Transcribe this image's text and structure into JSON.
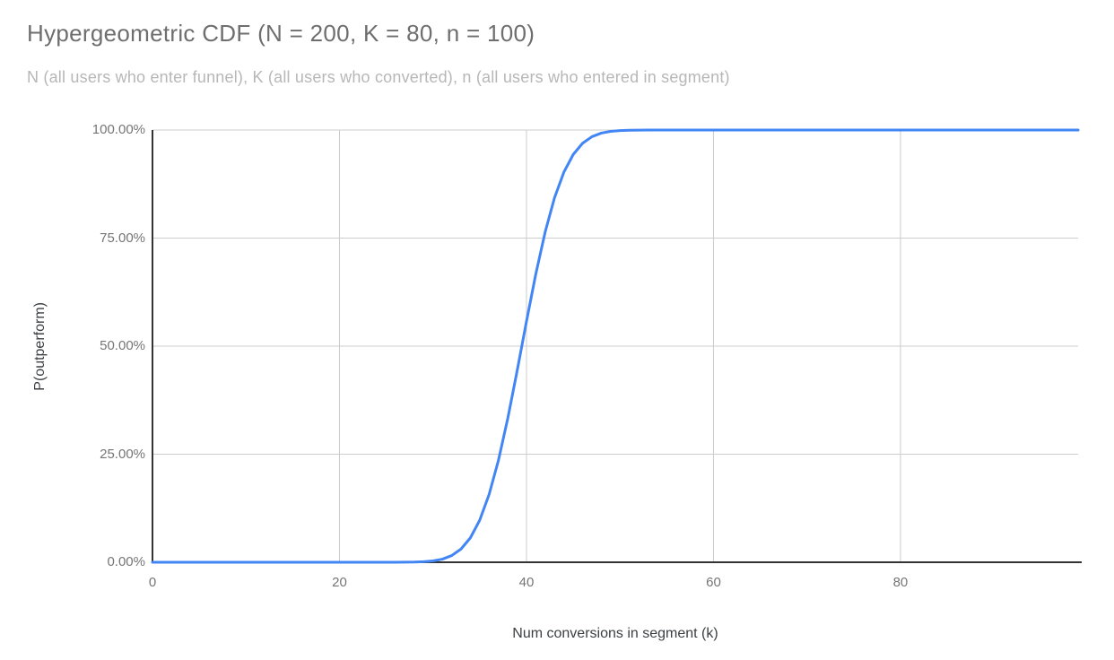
{
  "chart": {
    "title": "Hypergeometric CDF (N = 200, K = 80, n = 100)",
    "subtitle": "N (all users who enter funnel), K (all users who converted), n (all users who entered in segment)",
    "x_axis_title": "Num conversions in segment (k)",
    "y_axis_title": "P(outperform)"
  },
  "colors": {
    "series_line": "#4285f4",
    "gridline": "#cccccc",
    "axis_line": "#333333",
    "title_text": "#6e6e6e",
    "subtitle_text": "#b7b7b7",
    "tick_text": "#757575",
    "axis_title_text": "#3c4043",
    "background": "#ffffff"
  },
  "chart_data": {
    "type": "line",
    "title": "Hypergeometric CDF (N = 200, K = 80, n = 100)",
    "subtitle": "N (all users who enter funnel), K (all users who converted), n (all users who entered in segment)",
    "xlabel": "Num conversions in segment (k)",
    "ylabel": "P(outperform)",
    "xlim": [
      0,
      99
    ],
    "ylim": [
      0,
      1
    ],
    "grid": true,
    "legend": "none",
    "x_tick_values": [
      0,
      20,
      40,
      60,
      80
    ],
    "x_tick_labels": [
      "0",
      "20",
      "40",
      "60",
      "80"
    ],
    "y_tick_values": [
      0,
      0.25,
      0.5,
      0.75,
      1
    ],
    "y_tick_labels": [
      "0.00%",
      "25.00%",
      "50.00%",
      "75.00%",
      "100.00%"
    ],
    "series": [
      {
        "name": "P(outperform)",
        "color": "#4285f4",
        "x": [
          0,
          1,
          2,
          3,
          4,
          5,
          6,
          7,
          8,
          9,
          10,
          11,
          12,
          13,
          14,
          15,
          16,
          17,
          18,
          19,
          20,
          21,
          22,
          23,
          24,
          25,
          26,
          27,
          28,
          29,
          30,
          31,
          32,
          33,
          34,
          35,
          36,
          37,
          38,
          39,
          40,
          41,
          42,
          43,
          44,
          45,
          46,
          47,
          48,
          49,
          50,
          51,
          52,
          53,
          54,
          55,
          56,
          57,
          58,
          59,
          60,
          61,
          62,
          63,
          64,
          65,
          66,
          67,
          68,
          69,
          70,
          71,
          72,
          73,
          74,
          75,
          76,
          77,
          78,
          79,
          80,
          81,
          82,
          83,
          84,
          85,
          86,
          87,
          88,
          89,
          90,
          91,
          92,
          93,
          94,
          95,
          96,
          97,
          98,
          99
        ],
        "y": [
          0,
          0,
          0,
          0,
          0,
          0,
          0,
          0,
          0,
          0,
          0,
          0,
          0,
          0,
          0,
          0,
          0,
          0,
          0,
          0,
          0,
          0,
          0,
          0,
          0,
          2e-05,
          5e-05,
          0.00016,
          0.00046,
          0.00125,
          0.00311,
          0.00718,
          0.01539,
          0.03062,
          0.05655,
          0.09745,
          0.15672,
          0.23576,
          0.33287,
          0.44275,
          0.55725,
          0.66713,
          0.76424,
          0.84328,
          0.90255,
          0.94345,
          0.96938,
          0.98461,
          0.99282,
          0.99689,
          0.99875,
          0.99954,
          0.99984,
          0.99995,
          0.99998,
          0.99999,
          1,
          1,
          1,
          1,
          1,
          1,
          1,
          1,
          1,
          1,
          1,
          1,
          1,
          1,
          1,
          1,
          1,
          1,
          1,
          1,
          1,
          1,
          1,
          1,
          1,
          1,
          1,
          1,
          1,
          1,
          1,
          1,
          1,
          1,
          1,
          1,
          1,
          1,
          1,
          1,
          1,
          1,
          1,
          1
        ]
      }
    ]
  }
}
